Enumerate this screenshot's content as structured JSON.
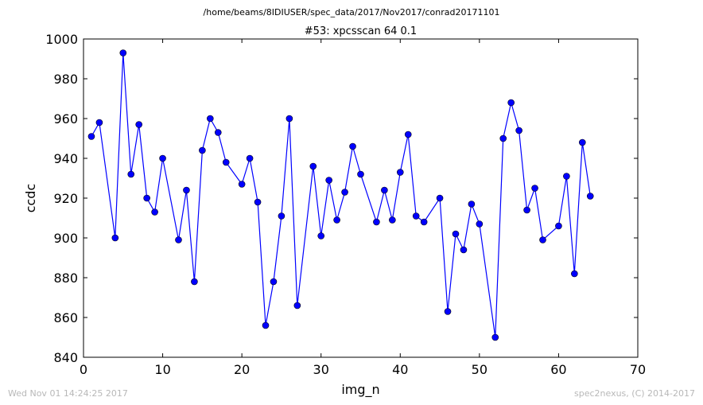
{
  "figure": {
    "suptitle": "/home/beams/8IDIUSER/spec_data/2017/Nov2017/conrad20171101",
    "footer_left": "Wed Nov 01 14:24:25 2017",
    "footer_right": "spec2nexus, (C) 2014-2017"
  },
  "chart_data": {
    "type": "line",
    "title": "#53: xpcsscan 64 0.1",
    "xlabel": "img_n",
    "ylabel": "ccdc",
    "xlim": [
      0,
      70
    ],
    "ylim": [
      840,
      1000
    ],
    "xticks": [
      0,
      10,
      20,
      30,
      40,
      50,
      60,
      70
    ],
    "yticks": [
      840,
      860,
      880,
      900,
      920,
      940,
      960,
      980,
      1000
    ],
    "grid": false,
    "line_color": "#0000ff",
    "marker_color": "#0000ff",
    "marker": "circle",
    "series": [
      {
        "x": [
          1,
          2,
          4,
          5,
          6,
          7,
          8,
          9,
          10,
          12,
          13,
          14,
          15,
          16,
          17,
          18,
          20,
          21,
          22,
          23,
          24,
          25,
          26,
          27,
          29,
          30,
          31,
          32,
          33,
          34,
          35,
          37,
          38,
          39,
          40,
          41,
          42,
          43,
          45,
          46,
          47,
          48,
          49,
          50,
          52,
          53,
          54,
          55,
          56,
          57,
          58,
          60,
          61,
          62,
          63,
          64
        ],
        "y": [
          951,
          958,
          900,
          993,
          932,
          957,
          920,
          913,
          940,
          899,
          924,
          878,
          944,
          960,
          953,
          938,
          927,
          940,
          918,
          856,
          878,
          911,
          960,
          866,
          936,
          901,
          929,
          909,
          923,
          946,
          932,
          908,
          924,
          909,
          933,
          952,
          911,
          908,
          920,
          863,
          902,
          894,
          917,
          907,
          850,
          950,
          968,
          954,
          914,
          925,
          899,
          906,
          931,
          882,
          948,
          921
        ]
      }
    ]
  }
}
